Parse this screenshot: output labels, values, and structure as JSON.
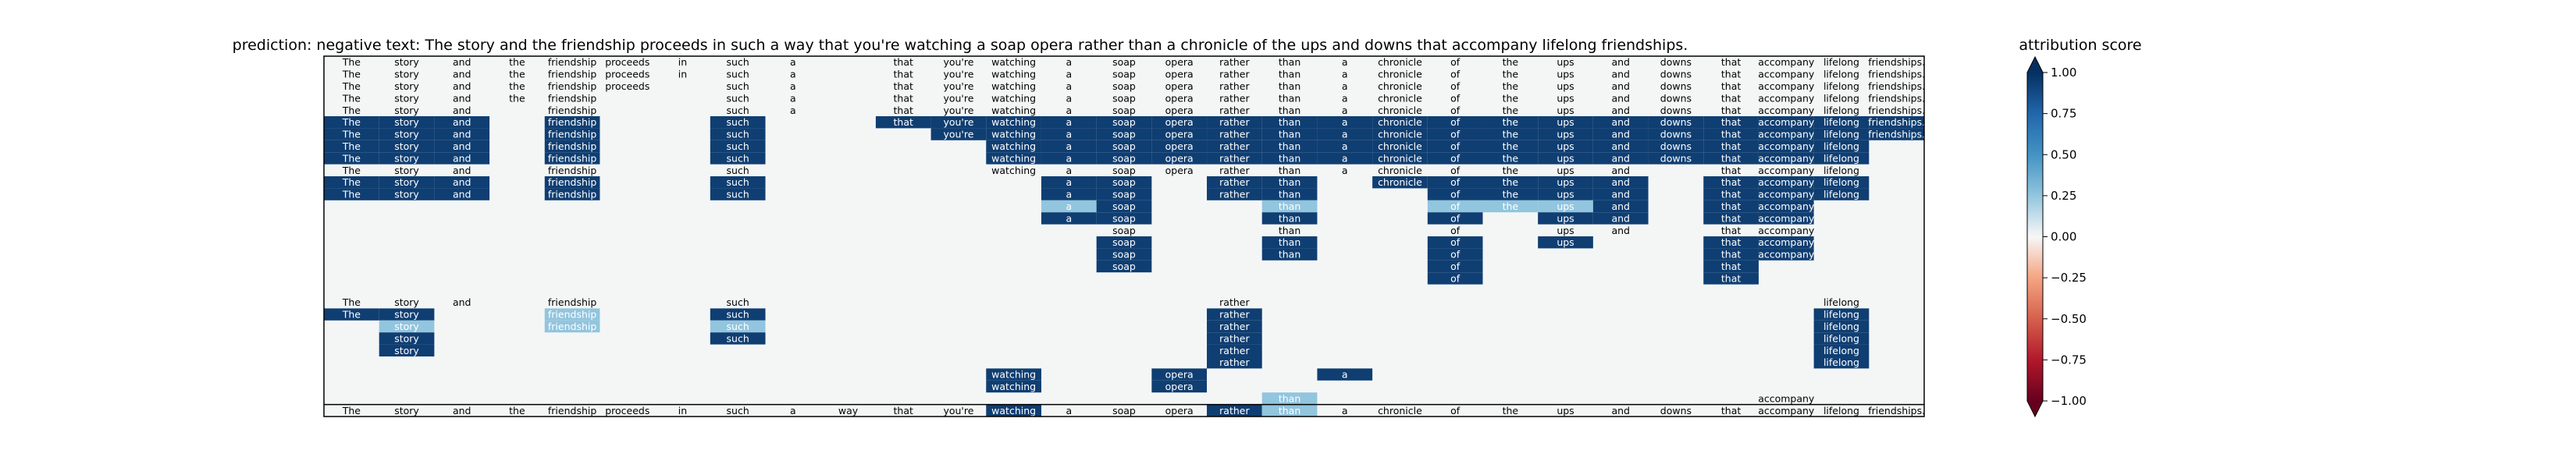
{
  "chart_data": {
    "type": "heatmap",
    "title": "prediction:  negative     text:  The story and the friendship proceeds in such a way that you're watching a soap opera rather than a chronicle of the ups and downs that accompany lifelong friendships.",
    "tokens": [
      "The",
      "story",
      "and",
      "the",
      "friendship",
      "proceeds",
      "in",
      "such",
      "a",
      "way",
      "that",
      "you're",
      "watching",
      "a",
      "soap",
      "opera",
      "rather",
      "than",
      "a",
      "chronicle",
      "of",
      "the",
      "ups",
      "and",
      "downs",
      "that",
      "accompany",
      "lifelong",
      "friendships."
    ],
    "rows": [
      {
        "show": [
          0,
          1,
          2,
          3,
          4,
          5,
          6,
          7,
          8,
          10,
          11,
          12,
          13,
          14,
          15,
          16,
          17,
          18,
          19,
          20,
          21,
          22,
          23,
          24,
          25,
          26,
          27,
          28
        ],
        "strong": []
      },
      {
        "show": [
          0,
          1,
          2,
          3,
          4,
          5,
          6,
          7,
          8,
          10,
          11,
          12,
          13,
          14,
          15,
          16,
          17,
          18,
          19,
          20,
          21,
          22,
          23,
          24,
          25,
          26,
          27,
          28
        ],
        "strong": []
      },
      {
        "show": [
          0,
          1,
          2,
          3,
          4,
          5,
          7,
          8,
          10,
          11,
          12,
          13,
          14,
          15,
          16,
          17,
          18,
          19,
          20,
          21,
          22,
          23,
          24,
          25,
          26,
          27,
          28
        ],
        "strong": []
      },
      {
        "show": [
          0,
          1,
          2,
          3,
          4,
          7,
          8,
          10,
          11,
          12,
          13,
          14,
          15,
          16,
          17,
          18,
          19,
          20,
          21,
          22,
          23,
          24,
          25,
          26,
          27,
          28
        ],
        "strong": []
      },
      {
        "show": [
          0,
          1,
          2,
          4,
          7,
          8,
          10,
          11,
          12,
          13,
          14,
          15,
          16,
          17,
          18,
          19,
          20,
          21,
          22,
          23,
          24,
          25,
          26,
          27,
          28
        ],
        "strong": []
      },
      {
        "show": [
          0,
          1,
          2,
          4,
          7,
          10,
          11,
          12,
          13,
          14,
          15,
          16,
          17,
          18,
          19,
          20,
          21,
          22,
          23,
          24,
          25,
          26,
          27,
          28
        ],
        "strong": [
          0,
          1,
          2,
          4,
          7,
          10,
          11,
          12,
          13,
          14,
          15,
          16,
          17,
          18,
          19,
          20,
          21,
          22,
          23,
          24,
          25,
          26,
          27,
          28
        ]
      },
      {
        "show": [
          0,
          1,
          2,
          4,
          7,
          11,
          12,
          13,
          14,
          15,
          16,
          17,
          18,
          19,
          20,
          21,
          22,
          23,
          24,
          25,
          26,
          27,
          28
        ],
        "strong": [
          0,
          1,
          2,
          4,
          7,
          11,
          12,
          13,
          14,
          15,
          16,
          17,
          18,
          19,
          20,
          21,
          22,
          23,
          24,
          25,
          26,
          27,
          28
        ]
      },
      {
        "show": [
          0,
          1,
          2,
          4,
          7,
          12,
          13,
          14,
          15,
          16,
          17,
          18,
          19,
          20,
          21,
          22,
          23,
          24,
          25,
          26,
          27
        ],
        "strong": [
          0,
          1,
          2,
          4,
          7,
          12,
          13,
          14,
          15,
          16,
          17,
          18,
          19,
          20,
          21,
          22,
          23,
          24,
          25,
          26,
          27
        ]
      },
      {
        "show": [
          0,
          1,
          2,
          4,
          7,
          12,
          13,
          14,
          15,
          16,
          17,
          18,
          19,
          20,
          21,
          22,
          23,
          24,
          25,
          26,
          27
        ],
        "strong": [
          0,
          1,
          2,
          4,
          7,
          12,
          13,
          14,
          15,
          16,
          17,
          18,
          19,
          20,
          21,
          22,
          23,
          24,
          25,
          26,
          27
        ]
      },
      {
        "show": [
          0,
          1,
          2,
          4,
          7,
          12,
          13,
          14,
          15,
          16,
          17,
          18,
          19,
          20,
          21,
          22,
          23,
          25,
          26,
          27
        ],
        "strong": []
      },
      {
        "show": [
          0,
          1,
          2,
          4,
          7,
          13,
          14,
          16,
          17,
          19,
          20,
          21,
          22,
          23,
          25,
          26,
          27
        ],
        "strong": [
          0,
          1,
          2,
          4,
          7,
          13,
          14,
          16,
          17,
          19,
          20,
          21,
          22,
          23,
          25,
          26,
          27
        ]
      },
      {
        "show": [
          0,
          1,
          2,
          4,
          7,
          13,
          14,
          16,
          17,
          20,
          21,
          22,
          23,
          25,
          26,
          27
        ],
        "strong": [
          0,
          1,
          2,
          4,
          7,
          13,
          14,
          16,
          17,
          20,
          21,
          22,
          23,
          25,
          26,
          27
        ]
      },
      {
        "show": [
          13,
          14,
          17,
          20,
          21,
          22,
          23,
          25,
          26
        ],
        "strong": [
          13,
          14,
          17,
          20,
          21,
          22,
          23,
          25,
          26
        ],
        "light": [
          13,
          17,
          20,
          21,
          22
        ]
      },
      {
        "show": [
          13,
          14,
          17,
          20,
          22,
          23,
          25,
          26
        ],
        "strong": [
          13,
          14,
          17,
          20,
          22,
          23,
          25,
          26
        ]
      },
      {
        "show": [
          14,
          17,
          20,
          22,
          23,
          25,
          26
        ],
        "strong": []
      },
      {
        "show": [
          14,
          17,
          20,
          22,
          25,
          26
        ],
        "strong": [
          14,
          17,
          20,
          22,
          25,
          26
        ]
      },
      {
        "show": [
          14,
          17,
          20,
          25,
          26
        ],
        "strong": [
          14,
          17,
          20,
          25,
          26
        ]
      },
      {
        "show": [
          14,
          20,
          25
        ],
        "strong": [
          14,
          20,
          25
        ]
      },
      {
        "show": [
          20,
          25
        ],
        "strong": [
          20,
          25
        ]
      },
      {
        "show": [],
        "strong": []
      },
      {
        "show": [
          0,
          1,
          2,
          4,
          7,
          16,
          27
        ],
        "strong": []
      },
      {
        "show": [
          0,
          1,
          4,
          7,
          16,
          27
        ],
        "strong": [
          0,
          1,
          4,
          7,
          16,
          27
        ],
        "light": [
          4
        ]
      },
      {
        "show": [
          1,
          4,
          7,
          16,
          27
        ],
        "strong": [
          1,
          4,
          7,
          16,
          27
        ],
        "light": [
          1,
          4,
          7
        ]
      },
      {
        "show": [
          1,
          7,
          16,
          27
        ],
        "strong": [
          1,
          7,
          16,
          27
        ]
      },
      {
        "show": [
          1,
          16,
          27
        ],
        "strong": [
          1,
          16,
          27
        ]
      },
      {
        "show": [
          16,
          27
        ],
        "strong": [
          16,
          27
        ]
      },
      {
        "show": [
          12,
          15,
          18
        ],
        "strong": [
          12,
          15,
          18
        ]
      },
      {
        "show": [
          12,
          15
        ],
        "strong": [
          12,
          15
        ]
      },
      {
        "show": [
          17,
          26
        ],
        "strong": [],
        "light": [
          17
        ]
      },
      {
        "show": [
          0,
          1,
          2,
          3,
          4,
          5,
          6,
          7,
          8,
          9,
          10,
          11,
          12,
          13,
          14,
          15,
          16,
          17,
          18,
          19,
          20,
          21,
          22,
          23,
          24,
          25,
          26,
          27,
          28
        ],
        "strong": [
          12,
          16,
          17
        ],
        "light": [
          17
        ]
      }
    ],
    "colorbar": {
      "label": "attribution score",
      "ticks": [
        "1.00",
        "0.75",
        "0.50",
        "0.25",
        "0.00",
        "−0.25",
        "−0.50",
        "−0.75",
        "−1.00"
      ],
      "vmin": -1.0,
      "vmax": 1.0
    }
  }
}
